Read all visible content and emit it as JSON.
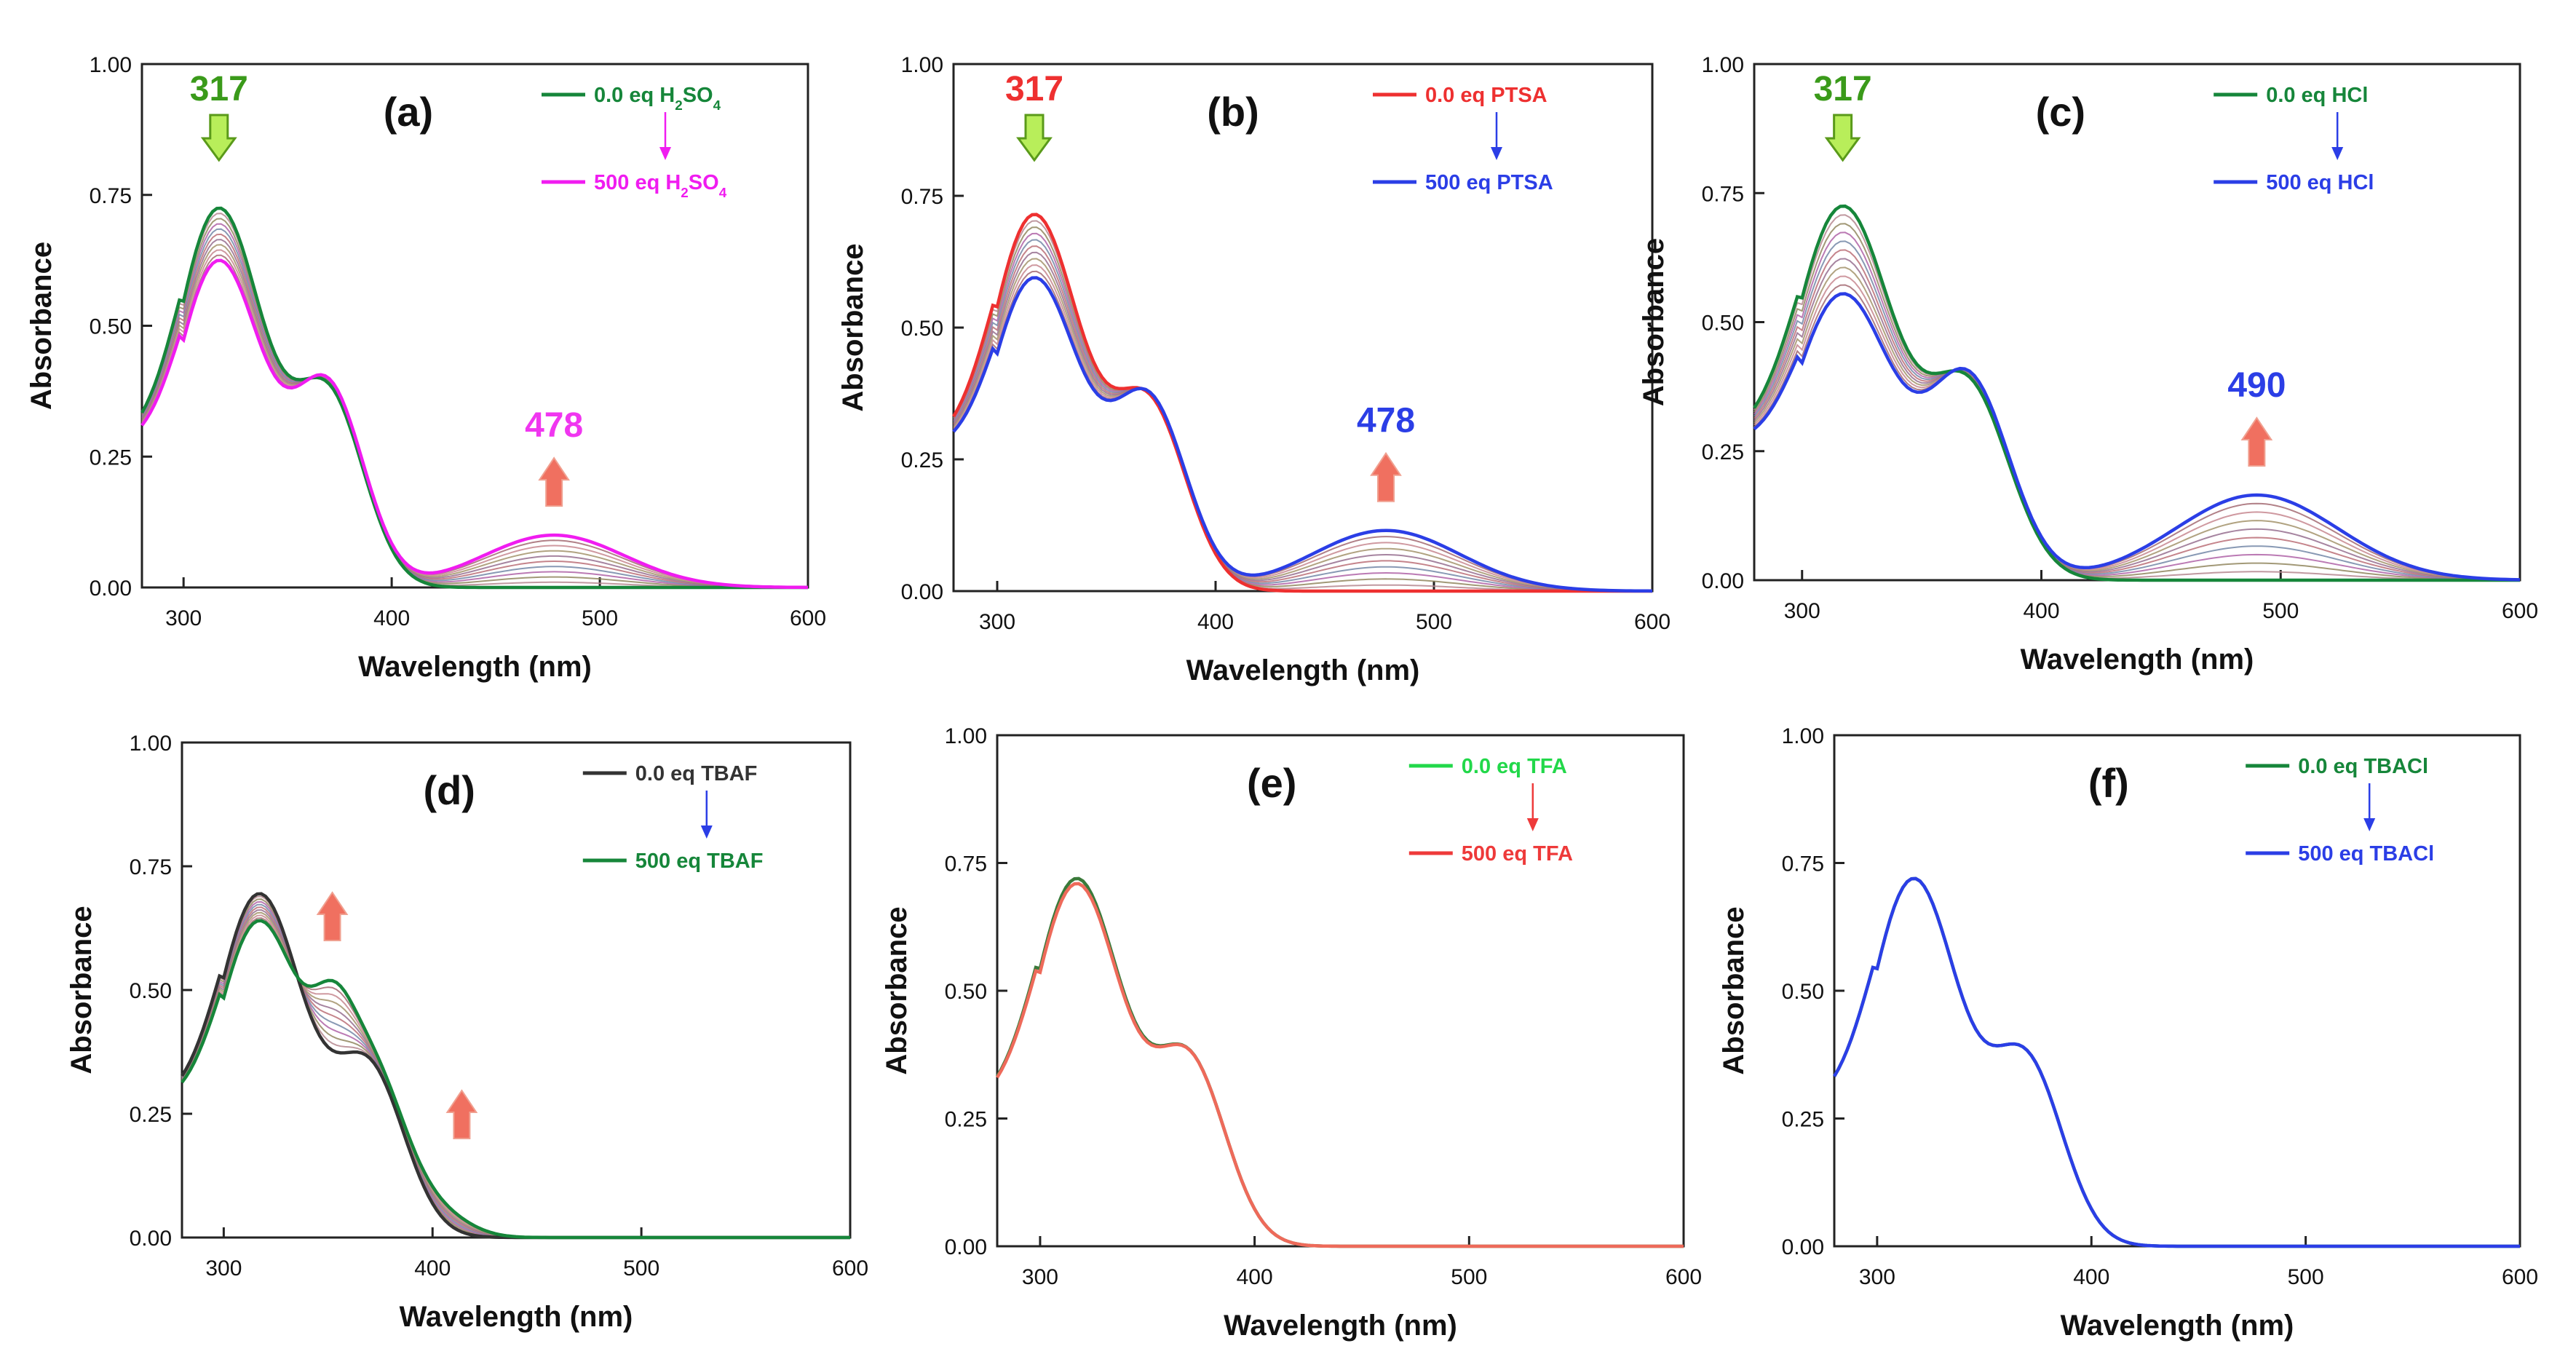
{
  "chart_data": [
    {
      "id": "a",
      "type": "line",
      "panel_label": "(a)",
      "xlabel": "Wavelength (nm)",
      "ylabel": "Absorbance",
      "xlim": [
        280,
        600
      ],
      "ylim": [
        0,
        1.0
      ],
      "x_ticks": [
        "300",
        "400",
        "500",
        "600"
      ],
      "y_ticks": [
        "0.00",
        "0.25",
        "0.50",
        "0.75",
        "1.00"
      ],
      "legend": {
        "start": "0.0 eq H2SO4",
        "end": "500 eq H2SO4",
        "start_color": "#16863a",
        "end_color": "#f01cf0",
        "arrow_color": "#f01cf0"
      },
      "annotations": [
        {
          "text": "317",
          "x": 317,
          "arrow": "down",
          "color": "#3a9a1a"
        },
        {
          "text": "478",
          "x": 478,
          "arrow": "up",
          "color": "#f036f0"
        }
      ],
      "series": [
        {
          "name": "0.0 eq H2SO4",
          "p1": 0.72,
          "p2": 0.35,
          "p3": 0.0,
          "p3c": 478,
          "color": "#16863a"
        },
        {
          "name": "500 eq H2SO4",
          "p1": 0.62,
          "p2": 0.365,
          "p3": 0.1,
          "p3c": 478,
          "color": "#f01cf0"
        }
      ],
      "intermediate_count": 9
    },
    {
      "id": "b",
      "type": "line",
      "panel_label": "(b)",
      "xlabel": "Wavelength (nm)",
      "ylabel": "Absorbance",
      "xlim": [
        280,
        600
      ],
      "ylim": [
        0,
        1.0
      ],
      "x_ticks": [
        "300",
        "400",
        "500",
        "600"
      ],
      "y_ticks": [
        "0.00",
        "0.25",
        "0.50",
        "0.75",
        "1.00"
      ],
      "legend": {
        "start": "0.0 eq PTSA",
        "end": "500 eq PTSA",
        "start_color": "#ee3030",
        "end_color": "#2b3ee6",
        "arrow_color": "#2b3ee6"
      },
      "annotations": [
        {
          "text": "317",
          "x": 317,
          "arrow": "down",
          "color": "#ee3030"
        },
        {
          "text": "478",
          "x": 478,
          "arrow": "up",
          "color": "#2b3ee6"
        }
      ],
      "series": [
        {
          "name": "0.0 eq PTSA",
          "p1": 0.71,
          "p2": 0.335,
          "p3": 0.0,
          "p3c": 478,
          "color": "#ee3030"
        },
        {
          "name": "500 eq PTSA",
          "p1": 0.59,
          "p2": 0.345,
          "p3": 0.115,
          "p3c": 478,
          "color": "#2b3ee6"
        }
      ],
      "intermediate_count": 9
    },
    {
      "id": "c",
      "type": "line",
      "panel_label": "(c)",
      "xlabel": "Wavelength (nm)",
      "ylabel": "Absorbance",
      "xlim": [
        280,
        600
      ],
      "ylim": [
        0,
        1.0
      ],
      "x_ticks": [
        "300",
        "400",
        "500",
        "600"
      ],
      "y_ticks": [
        "0.00",
        "0.25",
        "0.50",
        "0.75",
        "1.00"
      ],
      "legend": {
        "start": "0.0 eq HCl",
        "end": "500 eq HCl",
        "start_color": "#16863a",
        "end_color": "#2b3ee6",
        "arrow_color": "#2b3ee6"
      },
      "annotations": [
        {
          "text": "317",
          "x": 317,
          "arrow": "down",
          "color": "#3a9a1a"
        },
        {
          "text": "490",
          "x": 490,
          "arrow": "up",
          "color": "#2b3ee6"
        }
      ],
      "series": [
        {
          "name": "0.0 eq HCl",
          "p1": 0.72,
          "p2": 0.355,
          "p3": 0.0,
          "p3c": 490,
          "color": "#16863a"
        },
        {
          "name": "500 eq HCl",
          "p1": 0.55,
          "p2": 0.375,
          "p3": 0.165,
          "p3c": 490,
          "color": "#2b3ee6"
        }
      ],
      "intermediate_count": 9
    },
    {
      "id": "d",
      "type": "line",
      "panel_label": "(d)",
      "xlabel": "Wavelength (nm)",
      "ylabel": "Absorbance",
      "xlim": [
        280,
        600
      ],
      "ylim": [
        0,
        1.0
      ],
      "x_ticks": [
        "300",
        "400",
        "500",
        "600"
      ],
      "y_ticks": [
        "0.00",
        "0.25",
        "0.50",
        "0.75",
        "1.00"
      ],
      "legend": {
        "start": "0.0 eq TBAF",
        "end": "500 eq TBAF",
        "start_color": "#333333",
        "end_color": "#16863a",
        "arrow_color": "#2b3ee6"
      },
      "annotations": [
        {
          "text": "",
          "x": 352,
          "arrow": "up",
          "color": "#f05a4a",
          "y": 0.6
        },
        {
          "text": "",
          "x": 414,
          "arrow": "up",
          "color": "#f05a4a",
          "y": 0.2
        }
      ],
      "series": [
        {
          "name": "0.0 eq TBAF",
          "p1": 0.69,
          "p2": 0.325,
          "p3": 0.0,
          "p3c": 478,
          "ext": 0.0,
          "color": "#333333"
        },
        {
          "name": "500 eq TBAF",
          "p1": 0.635,
          "p2": 0.335,
          "p3": 0.0,
          "p3c": 478,
          "ext": 0.43,
          "color": "#16863a"
        }
      ],
      "intermediate_count": 9
    },
    {
      "id": "e",
      "type": "line",
      "panel_label": "(e)",
      "xlabel": "Wavelength (nm)",
      "ylabel": "Absorbance",
      "xlim": [
        280,
        600
      ],
      "ylim": [
        0,
        1.0
      ],
      "x_ticks": [
        "300",
        "400",
        "500",
        "600"
      ],
      "y_ticks": [
        "0.00",
        "0.25",
        "0.50",
        "0.75",
        "1.00"
      ],
      "legend": {
        "start": "0.0 eq TFA",
        "end": "500 eq TFA",
        "start_color": "#22d84a",
        "end_color": "#ee3a3a",
        "arrow_color": "#ee3a3a"
      },
      "annotations": [],
      "series": [
        {
          "name": "0.0 eq TFA",
          "p1": 0.715,
          "p2": 0.345,
          "p3": 0.0,
          "p3c": 478,
          "color": "#3a7a3a"
        },
        {
          "name": "500 eq TFA",
          "p1": 0.705,
          "p2": 0.345,
          "p3": 0.0,
          "p3c": 478,
          "color": "#ee6a5a"
        }
      ],
      "intermediate_count": 0
    },
    {
      "id": "f",
      "type": "line",
      "panel_label": "(f)",
      "xlabel": "Wavelength (nm)",
      "ylabel": "Absorbance",
      "xlim": [
        280,
        600
      ],
      "ylim": [
        0,
        1.0
      ],
      "x_ticks": [
        "300",
        "400",
        "500",
        "600"
      ],
      "y_ticks": [
        "0.00",
        "0.25",
        "0.50",
        "0.75",
        "1.00"
      ],
      "legend": {
        "start": "0.0 eq  TBACl",
        "end": "500 eq  TBACl",
        "start_color": "#16863a",
        "end_color": "#2b3ee6",
        "arrow_color": "#2b3ee6"
      },
      "annotations": [],
      "series": [
        {
          "name": "0.0 eq  TBACl",
          "p1": 0.715,
          "p2": 0.345,
          "p3": 0.0,
          "p3c": 478,
          "color": "#16863a"
        },
        {
          "name": "500 eq  TBACl",
          "p1": 0.715,
          "p2": 0.345,
          "p3": 0.0,
          "p3c": 478,
          "color": "#2b3ee6"
        }
      ],
      "intermediate_count": 0
    }
  ]
}
